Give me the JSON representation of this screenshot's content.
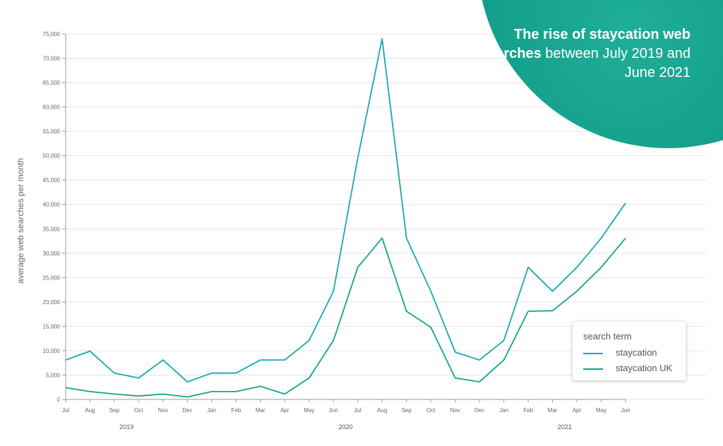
{
  "title": {
    "bold_text": "The rise of staycation web searches",
    "normal_text": "between July 2019 and June 2021"
  },
  "colors": {
    "staycation": "#17a9b0",
    "staycation_uk": "#10a58a",
    "grid": "#e4e4e4",
    "axis": "#999999",
    "blob": "#12a08a"
  },
  "legend": {
    "title": "search term",
    "items": [
      "staycation",
      "staycation UK"
    ]
  },
  "chart_data": {
    "type": "line",
    "ylabel": "average web searches per month",
    "ylim": [
      0,
      75000
    ],
    "yticks": [
      0,
      5000,
      10000,
      15000,
      20000,
      25000,
      30000,
      35000,
      40000,
      45000,
      50000,
      55000,
      60000,
      65000,
      70000,
      75000
    ],
    "ytick_labels": [
      "0",
      "5,000",
      "10,000",
      "15,000",
      "20,000",
      "25,000",
      "30,000",
      "35,000",
      "40,000",
      "45,000",
      "50,000",
      "55,000",
      "60,000",
      "65,000",
      "70,000",
      "75,000"
    ],
    "categories": [
      "Jul",
      "Aug",
      "Sep",
      "Oct",
      "Nov",
      "Dec",
      "Jan",
      "Feb",
      "Mar",
      "Apr",
      "May",
      "Jun",
      "Jul",
      "Aug",
      "Sep",
      "Oct",
      "Nov",
      "Dec",
      "Jan",
      "Feb",
      "Mar",
      "Apr",
      "May",
      "Jun"
    ],
    "year_labels": [
      {
        "label": "2019",
        "category_index": 2.5
      },
      {
        "label": "2020",
        "category_index": 11.5
      },
      {
        "label": "2021",
        "category_index": 20.5
      }
    ],
    "grid": true,
    "legend_position": "bottom-right",
    "series": [
      {
        "name": "staycation",
        "values": [
          8100,
          9900,
          5400,
          4400,
          8100,
          3600,
          5400,
          5400,
          8100,
          8100,
          12100,
          22200,
          49500,
          74000,
          33100,
          22200,
          9700,
          8100,
          12100,
          27100,
          22200,
          27100,
          33100,
          40300
        ]
      },
      {
        "name": "staycation UK",
        "values": [
          2400,
          1600,
          1100,
          700,
          1100,
          500,
          1600,
          1600,
          2700,
          1100,
          4400,
          12100,
          27100,
          33100,
          18100,
          14800,
          4400,
          3600,
          8100,
          18100,
          18200,
          22200,
          27100,
          33100
        ]
      }
    ]
  }
}
